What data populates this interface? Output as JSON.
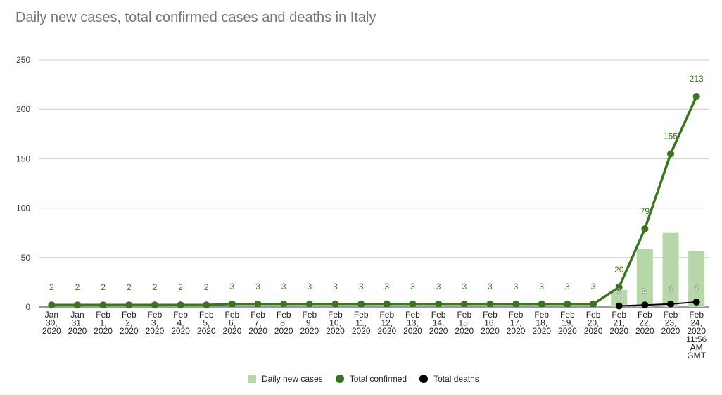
{
  "title": "Daily new cases, total confirmed cases and deaths in Italy",
  "colors": {
    "bars": "#b6d7a8",
    "confirmed": "#38761d",
    "deaths": "#000000",
    "grid": "#cccccc"
  },
  "legend": {
    "daily": "Daily new cases",
    "confirmed": "Total confirmed",
    "deaths": "Total deaths"
  },
  "chart_data": {
    "type": "bar",
    "title": "Daily new cases, total confirmed cases and deaths in Italy",
    "ylim": [
      0,
      250
    ],
    "yticks": [
      0,
      50,
      100,
      150,
      200,
      250
    ],
    "grid": true,
    "legend_position": "bottom",
    "categories": [
      [
        "Jan",
        "30,",
        "2020"
      ],
      [
        "Jan",
        "31,",
        "2020"
      ],
      [
        "Feb",
        "1,",
        "2020"
      ],
      [
        "Feb",
        "2,",
        "2020"
      ],
      [
        "Feb",
        "3,",
        "2020"
      ],
      [
        "Feb",
        "4,",
        "2020"
      ],
      [
        "Feb",
        "5,",
        "2020"
      ],
      [
        "Feb",
        "6,",
        "2020"
      ],
      [
        "Feb",
        "7,",
        "2020"
      ],
      [
        "Feb",
        "8,",
        "2020"
      ],
      [
        "Feb",
        "9,",
        "2020"
      ],
      [
        "Feb",
        "10,",
        "2020"
      ],
      [
        "Feb",
        "11,",
        "2020"
      ],
      [
        "Feb",
        "12,",
        "2020"
      ],
      [
        "Feb",
        "13,",
        "2020"
      ],
      [
        "Feb",
        "14,",
        "2020"
      ],
      [
        "Feb",
        "15,",
        "2020"
      ],
      [
        "Feb",
        "16,",
        "2020"
      ],
      [
        "Feb",
        "17,",
        "2020"
      ],
      [
        "Feb",
        "18,",
        "2020"
      ],
      [
        "Feb",
        "19,",
        "2020"
      ],
      [
        "Feb",
        "20,",
        "2020"
      ],
      [
        "Feb",
        "21,",
        "2020"
      ],
      [
        "Feb",
        "22,",
        "2020"
      ],
      [
        "Feb",
        "23,",
        "2020"
      ],
      [
        "Feb",
        "24,",
        "2020",
        "11:56",
        "AM",
        "GMT"
      ]
    ],
    "series": [
      {
        "name": "Daily new cases",
        "type": "bar",
        "values": [
          0,
          0,
          0,
          0,
          0,
          0,
          0,
          0,
          0,
          0,
          0,
          0,
          0,
          0,
          0,
          0,
          0,
          0,
          0,
          0,
          0,
          0,
          17,
          59,
          75,
          57
        ]
      },
      {
        "name": "Total confirmed",
        "type": "line",
        "values": [
          2,
          2,
          2,
          2,
          2,
          2,
          2,
          3,
          3,
          3,
          3,
          3,
          3,
          3,
          3,
          3,
          3,
          3,
          3,
          3,
          3,
          3,
          20,
          79,
          155,
          213
        ]
      },
      {
        "name": "Total deaths",
        "type": "line",
        "values": [
          null,
          null,
          null,
          null,
          null,
          null,
          null,
          null,
          null,
          null,
          null,
          null,
          null,
          null,
          null,
          null,
          null,
          null,
          null,
          null,
          null,
          null,
          1,
          2,
          3,
          5
        ]
      }
    ]
  }
}
